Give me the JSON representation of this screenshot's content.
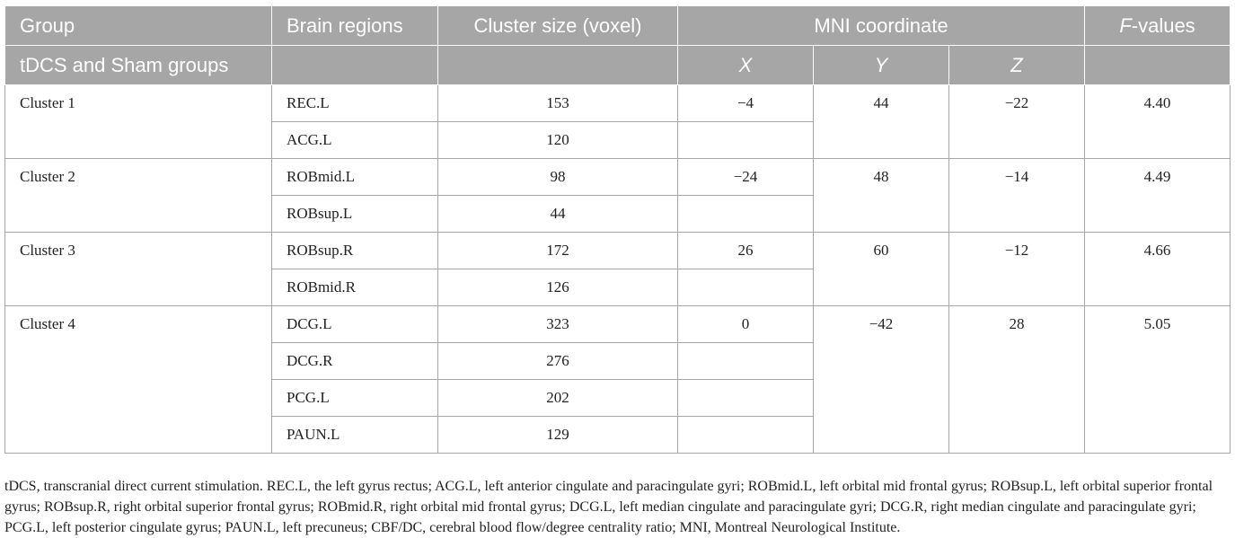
{
  "header": {
    "group_line1": "Group",
    "group_line2": "tDCS and Sham groups",
    "brain_regions": "Brain regions",
    "cluster_size": "Cluster size (voxel)",
    "mni": "MNI coordinate",
    "f_italic": "F",
    "f_rest": "-values",
    "x": "X",
    "y": "Y",
    "z": "Z"
  },
  "clusters": [
    {
      "name": "Cluster 1",
      "x": "−4",
      "y": "44",
      "z": "−22",
      "f": "4.40",
      "rows": [
        {
          "region": "REC.L",
          "size": "153"
        },
        {
          "region": "ACG.L",
          "size": "120"
        }
      ]
    },
    {
      "name": "Cluster 2",
      "x": "−24",
      "y": "48",
      "z": "−14",
      "f": "4.49",
      "rows": [
        {
          "region": "ROBmid.L",
          "size": "98"
        },
        {
          "region": "ROBsup.L",
          "size": "44"
        }
      ]
    },
    {
      "name": "Cluster 3",
      "x": "26",
      "y": "60",
      "z": "−12",
      "f": "4.66",
      "rows": [
        {
          "region": "ROBsup.R",
          "size": "172"
        },
        {
          "region": "ROBmid.R",
          "size": "126"
        }
      ]
    },
    {
      "name": "Cluster 4",
      "x": "0",
      "y": "−42",
      "z": "28",
      "f": "5.05",
      "rows": [
        {
          "region": "DCG.L",
          "size": "323"
        },
        {
          "region": "DCG.R",
          "size": "276"
        },
        {
          "region": "PCG.L",
          "size": "202"
        },
        {
          "region": "PAUN.L",
          "size": "129"
        }
      ]
    }
  ],
  "footnote": "tDCS, transcranial direct current stimulation. REC.L, the left gyrus rectus; ACG.L, left anterior cingulate and paracingulate gyri; ROBmid.L, left orbital mid frontal gyrus; ROBsup.L, left orbital superior frontal gyrus; ROBsup.R, right orbital superior frontal gyrus; ROBmid.R, right orbital mid frontal gyrus; DCG.L, left median cingulate and paracingulate gyri; DCG.R, right median cingulate and paracingulate gyri; PCG.L, left posterior cingulate gyrus; PAUN.L, left precuneus; CBF/DC, cerebral blood flow/degree centrality ratio; MNI, Montreal Neurological Institute."
}
